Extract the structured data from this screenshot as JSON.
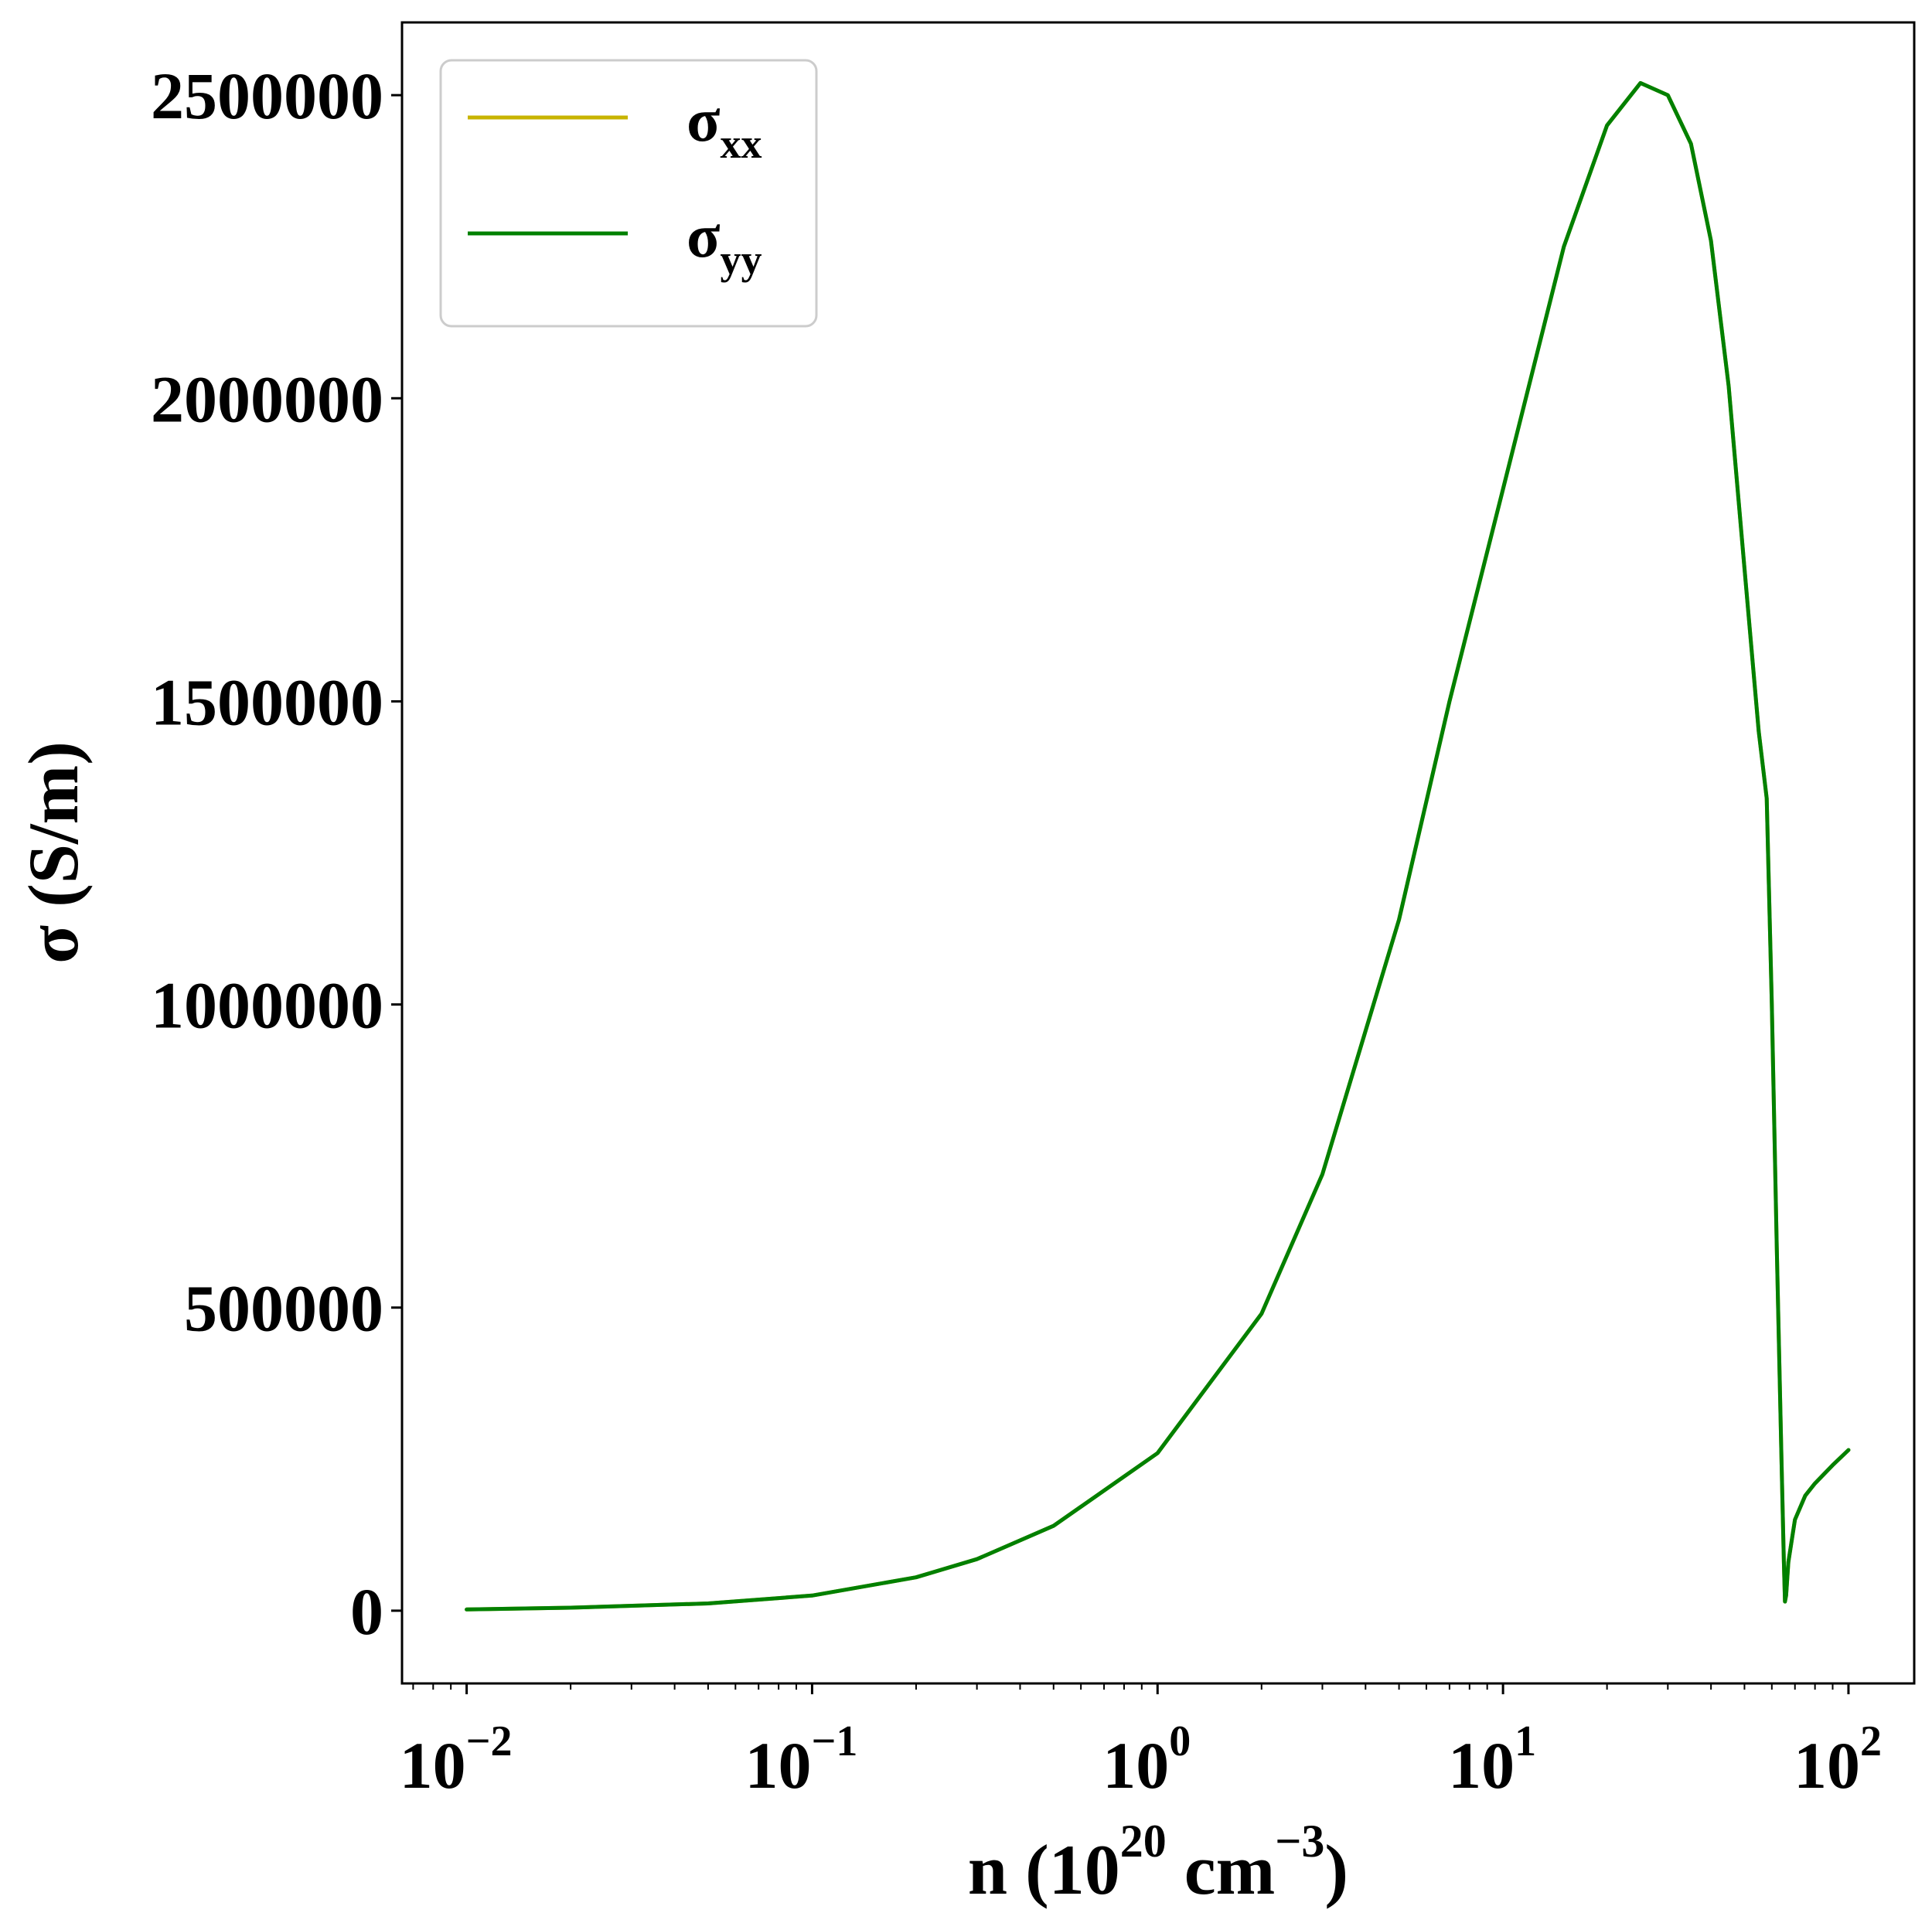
{
  "chart_data": {
    "type": "line",
    "xscale": "log",
    "xlim": [
      0.0065,
      155
    ],
    "ylim": [
      -120000,
      2620000
    ],
    "xlabel": {
      "prefix": "n (10",
      "sup1": "20",
      "middle": " cm",
      "sup2": "−3",
      "suffix": ")"
    },
    "ylabel": "σ (S/m)",
    "yticks": [
      {
        "value": 0,
        "label": "0"
      },
      {
        "value": 500000,
        "label": "500000"
      },
      {
        "value": 1000000,
        "label": "1000000"
      },
      {
        "value": 1500000,
        "label": "1500000"
      },
      {
        "value": 2000000,
        "label": "2000000"
      },
      {
        "value": 2500000,
        "label": "2500000"
      }
    ],
    "xticks": [
      {
        "value": 0.01,
        "base": "10",
        "exp": "−2"
      },
      {
        "value": 0.1,
        "base": "10",
        "exp": "−1"
      },
      {
        "value": 1,
        "base": "10",
        "exp": "0"
      },
      {
        "value": 10,
        "base": "10",
        "exp": "1"
      },
      {
        "value": 100,
        "base": "10",
        "exp": "2"
      }
    ],
    "legend": {
      "placement": "top-left",
      "entries": [
        {
          "symbol": "σ",
          "subscript": "xx",
          "color": "#c8b400"
        },
        {
          "symbol": "σ",
          "subscript": "yy",
          "color": "#008000"
        }
      ]
    },
    "series": [
      {
        "name": "σxx",
        "color": "#c8b400",
        "x": [
          0.01,
          0.02,
          0.05,
          0.1,
          0.2,
          0.3,
          0.5,
          1,
          2,
          3,
          5,
          7,
          10,
          15,
          20,
          25,
          30,
          35,
          40,
          45,
          50,
          55,
          58,
          60,
          62,
          64,
          65,
          65.5,
          66,
          67,
          70,
          75,
          80,
          90,
          100
        ],
        "y": [
          2000,
          5000,
          12000,
          25000,
          55000,
          85000,
          140000,
          260000,
          490000,
          720000,
          1140000,
          1500000,
          1850000,
          2250000,
          2450000,
          2520000,
          2500000,
          2420000,
          2260000,
          2020000,
          1720000,
          1450000,
          1340000,
          1000000,
          600000,
          250000,
          80000,
          15000,
          25000,
          80000,
          150000,
          190000,
          210000,
          240000,
          265000
        ]
      },
      {
        "name": "σyy",
        "color": "#008000",
        "x": [
          0.01,
          0.02,
          0.05,
          0.1,
          0.2,
          0.3,
          0.5,
          1,
          2,
          3,
          5,
          7,
          10,
          15,
          20,
          25,
          30,
          35,
          40,
          45,
          50,
          55,
          58,
          60,
          62,
          64,
          65,
          65.5,
          66,
          67,
          70,
          75,
          80,
          90,
          100
        ],
        "y": [
          2000,
          5000,
          12000,
          25000,
          55000,
          85000,
          140000,
          260000,
          490000,
          720000,
          1140000,
          1500000,
          1850000,
          2250000,
          2450000,
          2520000,
          2500000,
          2420000,
          2260000,
          2020000,
          1720000,
          1450000,
          1340000,
          1000000,
          600000,
          250000,
          80000,
          15000,
          25000,
          80000,
          150000,
          190000,
          210000,
          240000,
          265000
        ]
      }
    ],
    "grid": false
  }
}
